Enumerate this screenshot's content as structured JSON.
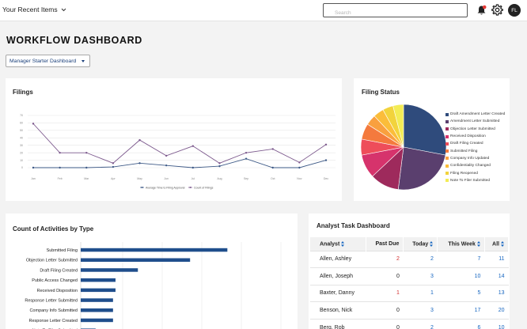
{
  "topbar": {
    "recent_label": "Your Recent Items",
    "search_placeholder": "Search",
    "avatar_initials": "FL"
  },
  "page": {
    "title": "WORKFLOW DASHBOARD",
    "dashboard_select": "Manager Starter Dashboard"
  },
  "filings": {
    "title": "Filings",
    "chart_data": {
      "type": "line",
      "x": [
        "Jan",
        "Feb",
        "Mar",
        "Apr",
        "May",
        "Jun",
        "Jul",
        "Aug",
        "Sep",
        "Oct",
        "Nov",
        "Dec"
      ],
      "ylim": [
        0,
        70
      ],
      "yticks": [
        0,
        10,
        20,
        30,
        40,
        50,
        60,
        70
      ],
      "grid": true,
      "legend_position": "bottom",
      "series": [
        {
          "name": "Average Time to Filing Approval",
          "color": "#3e5a87",
          "values": [
            0,
            0,
            0,
            1,
            6,
            3,
            0,
            2,
            12,
            0,
            0,
            10
          ]
        },
        {
          "name": "Count of Filings",
          "color": "#7d5a8e",
          "values": [
            59,
            20,
            20,
            6,
            37,
            16,
            29,
            6,
            20,
            25,
            7,
            31
          ]
        }
      ]
    }
  },
  "filing_status": {
    "title": "Filing Status",
    "chart_data": {
      "type": "pie",
      "legend_position": "right",
      "slices": [
        {
          "label": "Draft Amendment Letter Created",
          "value": 28,
          "color": "#2f4b7c"
        },
        {
          "label": "Amendment Letter Submitted",
          "value": 24,
          "color": "#5a3f6e"
        },
        {
          "label": "Objection Letter Submitted",
          "value": 11,
          "color": "#9e2a5c"
        },
        {
          "label": "Received Disposition",
          "value": 9,
          "color": "#d6336c"
        },
        {
          "label": "Draft Filing Created",
          "value": 6,
          "color": "#ee4d5a"
        },
        {
          "label": "Submitted Filing",
          "value": 6,
          "color": "#f47a3d"
        },
        {
          "label": "Company Info Updated",
          "value": 4,
          "color": "#f9a03f"
        },
        {
          "label": "Confidentiality Changed",
          "value": 4,
          "color": "#fbbd3a"
        },
        {
          "label": "Filing Reopened",
          "value": 4,
          "color": "#f2d33c"
        },
        {
          "label": "Note To Filer Submitted",
          "value": 4,
          "color": "#f3ec55"
        }
      ]
    }
  },
  "activities": {
    "title": "Count of Activities by Type",
    "chart_data": {
      "type": "bar",
      "orientation": "horizontal",
      "color": "#1f4e8c",
      "grid": true,
      "categories": [
        "Submitted Filing",
        "Objection Letter Submitted",
        "Draft Filing Created",
        "Public Access Changed",
        "Received Disposition",
        "Response Letter Submitted",
        "Company Info Submitted",
        "Response Letter Created",
        "Note To Filer Submitted"
      ],
      "values": [
        59,
        44,
        23,
        14,
        14,
        13,
        13,
        13,
        6
      ],
      "xlim": [
        0,
        85
      ]
    }
  },
  "analyst": {
    "title": "Analyst Task Dashboard",
    "columns": [
      "Analyst",
      "Past Due",
      "Today",
      "This Week",
      "All"
    ],
    "rows": [
      {
        "name": "Allen, Ashley",
        "past_due": "2",
        "today": "2",
        "week": "7",
        "all": "11"
      },
      {
        "name": "Allen, Joseph",
        "past_due": "0",
        "today": "3",
        "week": "10",
        "all": "14"
      },
      {
        "name": "Baxter, Danny",
        "past_due": "1",
        "today": "1",
        "week": "5",
        "all": "13"
      },
      {
        "name": "Benson, Nick",
        "past_due": "0",
        "today": "3",
        "week": "17",
        "all": "20"
      },
      {
        "name": "Berg, Rob",
        "past_due": "0",
        "today": "2",
        "week": "6",
        "all": "10"
      }
    ]
  }
}
